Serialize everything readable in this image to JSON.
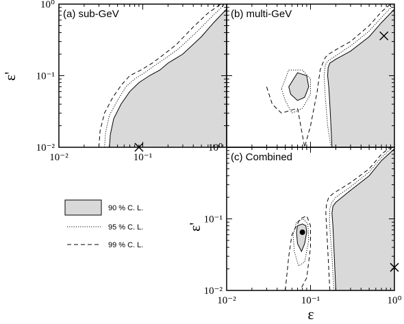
{
  "chart_data": [
    {
      "type": "area",
      "panel": "a",
      "panel_label": "(a) sub-GeV",
      "xscale": "log",
      "yscale": "log",
      "xlim": [
        0.01,
        1
      ],
      "ylim": [
        0.01,
        1
      ],
      "ylabel": "ε'",
      "y_ticks": [
        "10⁻²",
        "10⁻¹",
        "10⁰"
      ],
      "x_ticks": [
        "10⁻²",
        "10⁻¹"
      ],
      "best_fit": {
        "x": 0.09,
        "y": 0.01,
        "marker": "cross"
      },
      "contours": [
        {
          "name": "90 % C. L.",
          "style": "filled",
          "x": [
            0.04,
            0.041,
            0.045,
            0.055,
            0.07,
            0.09,
            0.12,
            0.16,
            0.2,
            0.3,
            0.5,
            0.7,
            1.0
          ],
          "y": [
            0.01,
            0.015,
            0.025,
            0.04,
            0.06,
            0.08,
            0.1,
            0.12,
            0.15,
            0.2,
            0.35,
            0.55,
            0.85
          ]
        },
        {
          "name": "95 % C. L.",
          "style": "dotted",
          "x": [
            0.035,
            0.036,
            0.04,
            0.05,
            0.063,
            0.08,
            0.105,
            0.14,
            0.18,
            0.27,
            0.45,
            0.65,
            0.95
          ],
          "y": [
            0.01,
            0.016,
            0.028,
            0.045,
            0.07,
            0.09,
            0.11,
            0.14,
            0.17,
            0.24,
            0.42,
            0.65,
            1.0
          ]
        },
        {
          "name": "99 % C. L.",
          "style": "dashed",
          "x": [
            0.03,
            0.031,
            0.035,
            0.044,
            0.056,
            0.07,
            0.095,
            0.13,
            0.17,
            0.25,
            0.4,
            0.6,
            0.85
          ],
          "y": [
            0.01,
            0.017,
            0.03,
            0.05,
            0.075,
            0.1,
            0.12,
            0.15,
            0.19,
            0.27,
            0.48,
            0.75,
            1.0
          ]
        }
      ]
    },
    {
      "type": "area",
      "panel": "b",
      "panel_label": "(b) multi-GeV",
      "xscale": "log",
      "yscale": "log",
      "xlim": [
        0.01,
        1
      ],
      "ylim": [
        0.01,
        1
      ],
      "best_fit": {
        "x": 0.75,
        "y": 0.36,
        "marker": "cross"
      },
      "contours": [
        {
          "name": "90 % C. L.",
          "style": "filled",
          "x": [
            0.18,
            0.175,
            0.17,
            0.165,
            0.16,
            0.162,
            0.17,
            0.2,
            0.3,
            0.5,
            0.7,
            1.0
          ],
          "y": [
            0.01,
            0.02,
            0.04,
            0.07,
            0.1,
            0.13,
            0.15,
            0.17,
            0.22,
            0.35,
            0.55,
            0.85
          ]
        },
        {
          "name": "90 % C. L. island",
          "style": "filled",
          "x": [
            0.055,
            0.058,
            0.07,
            0.085,
            0.095,
            0.09,
            0.07,
            0.055
          ],
          "y": [
            0.07,
            0.055,
            0.045,
            0.05,
            0.07,
            0.1,
            0.11,
            0.07
          ]
        },
        {
          "name": "95 % C. L.",
          "style": "dotted",
          "x": [
            0.175,
            0.16,
            0.15,
            0.145,
            0.15,
            0.16,
            0.2,
            0.3,
            0.5,
            0.7,
            1.0
          ],
          "y": [
            0.01,
            0.02,
            0.05,
            0.1,
            0.14,
            0.16,
            0.19,
            0.26,
            0.42,
            0.65,
            1.0
          ]
        },
        {
          "name": "95 % C. L. island",
          "style": "dotted",
          "x": [
            0.045,
            0.05,
            0.06,
            0.08,
            0.1,
            0.1,
            0.08,
            0.055,
            0.045
          ],
          "y": [
            0.065,
            0.045,
            0.03,
            0.035,
            0.055,
            0.09,
            0.12,
            0.12,
            0.065
          ]
        },
        {
          "name": "99 % C. L.",
          "style": "dashed",
          "x": [
            0.03,
            0.035,
            0.045,
            0.07,
            0.085,
            0.1,
            0.12,
            0.13,
            0.14,
            0.15,
            0.165,
            0.2,
            0.3,
            0.5,
            0.7,
            0.9
          ],
          "y": [
            0.07,
            0.04,
            0.03,
            0.035,
            0.01,
            0.02,
            0.06,
            0.12,
            0.15,
            0.18,
            0.2,
            0.23,
            0.3,
            0.5,
            0.78,
            1.0
          ]
        }
      ]
    },
    {
      "type": "area",
      "panel": "c",
      "panel_label": "(c) Combined",
      "xscale": "log",
      "yscale": "log",
      "xlim": [
        0.01,
        1
      ],
      "ylim": [
        0.01,
        1
      ],
      "xlabel": "ε",
      "ylabel": "ε'",
      "x_ticks": [
        "10⁻²",
        "10⁻¹",
        "10⁰"
      ],
      "y_ticks": [
        "10⁻²",
        "10⁻¹",
        "10⁰"
      ],
      "best_fit": {
        "x": 0.08,
        "y": 0.065,
        "marker": "dot"
      },
      "best_fit_alt": {
        "x": 1.0,
        "y": 0.021,
        "marker": "cross"
      },
      "contours": [
        {
          "name": "90 % C. L.",
          "style": "filled",
          "x": [
            0.2,
            0.195,
            0.19,
            0.185,
            0.18,
            0.185,
            0.2,
            0.3,
            0.5,
            0.7,
            1.0
          ],
          "y": [
            0.01,
            0.02,
            0.04,
            0.08,
            0.12,
            0.15,
            0.17,
            0.25,
            0.4,
            0.65,
            0.95
          ]
        },
        {
          "name": "90 % C. L. island",
          "style": "filled",
          "x": [
            0.068,
            0.07,
            0.078,
            0.085,
            0.09,
            0.088,
            0.08,
            0.07,
            0.068
          ],
          "y": [
            0.065,
            0.045,
            0.035,
            0.045,
            0.065,
            0.08,
            0.085,
            0.08,
            0.065
          ]
        },
        {
          "name": "95 % C. L.",
          "style": "dotted",
          "x": [
            0.19,
            0.18,
            0.172,
            0.168,
            0.17,
            0.18,
            0.2,
            0.3,
            0.5,
            0.7,
            0.95
          ],
          "y": [
            0.01,
            0.03,
            0.06,
            0.1,
            0.14,
            0.17,
            0.2,
            0.28,
            0.45,
            0.72,
            1.0
          ]
        },
        {
          "name": "95 % C. L. island",
          "style": "dotted",
          "x": [
            0.062,
            0.064,
            0.072,
            0.085,
            0.095,
            0.093,
            0.082,
            0.068,
            0.062
          ],
          "y": [
            0.06,
            0.035,
            0.022,
            0.025,
            0.05,
            0.085,
            0.1,
            0.09,
            0.06
          ]
        },
        {
          "name": "99 % C. L.",
          "style": "dashed",
          "x": [
            0.17,
            0.16,
            0.155,
            0.152,
            0.155,
            0.165,
            0.19,
            0.3,
            0.5,
            0.7,
            0.9
          ],
          "y": [
            0.01,
            0.04,
            0.08,
            0.12,
            0.16,
            0.2,
            0.23,
            0.32,
            0.5,
            0.8,
            1.0
          ]
        },
        {
          "name": "99 % C. L. island",
          "style": "dashed",
          "x": [
            0.05,
            0.055,
            0.06,
            0.075,
            0.09,
            0.1,
            0.1,
            0.09,
            0.075,
            0.06,
            0.05
          ],
          "y": [
            0.01,
            0.03,
            0.06,
            0.1,
            0.11,
            0.08,
            0.04,
            0.015,
            0.01,
            0.01,
            0.01
          ]
        }
      ]
    }
  ],
  "legend": {
    "items": [
      {
        "label": "90 % C. L.",
        "style": "filled"
      },
      {
        "label": "95 % C. L.",
        "style": "dotted"
      },
      {
        "label": "99 % C. L.",
        "style": "dashed"
      }
    ]
  },
  "colors": {
    "fill": "#d9d9d9",
    "line": "#000000",
    "background": "#ffffff"
  }
}
